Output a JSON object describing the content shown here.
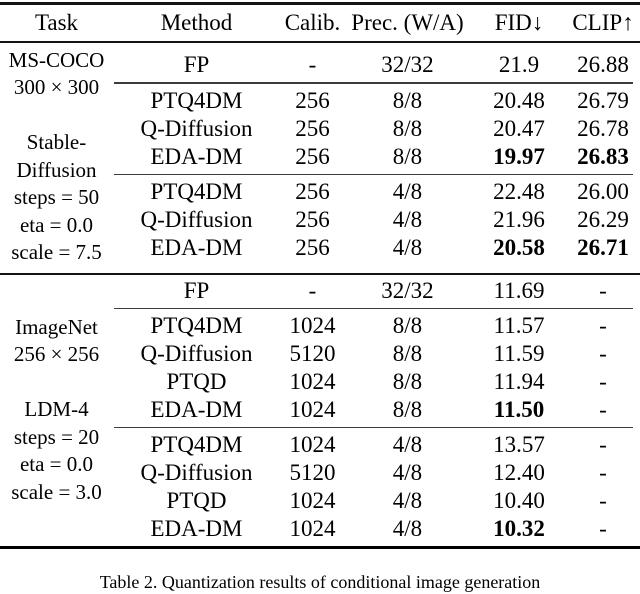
{
  "header": {
    "columns": [
      "Task",
      "Method",
      "Calib.",
      "Prec. (W/A)",
      "FID↓",
      "CLIP↑"
    ]
  },
  "blocks": [
    {
      "task_lines": [
        "MS-COCO",
        "300 × 300",
        "",
        "Stable-",
        "Diffusion",
        "steps = 50",
        "eta = 0.0",
        "scale = 7.5"
      ],
      "groups": [
        {
          "rows": [
            {
              "method": "FP",
              "calib": "-",
              "prec": "32/32",
              "fid": "21.9",
              "clip": "26.88"
            }
          ]
        },
        {
          "rows": [
            {
              "method": "PTQ4DM",
              "calib": "256",
              "prec": "8/8",
              "fid": "20.48",
              "clip": "26.79"
            },
            {
              "method": "Q-Diffusion",
              "calib": "256",
              "prec": "8/8",
              "fid": "20.47",
              "clip": "26.78"
            },
            {
              "method": "EDA-DM",
              "calib": "256",
              "prec": "8/8",
              "fid": "19.97",
              "clip": "26.83"
            }
          ]
        },
        {
          "rows": [
            {
              "method": "PTQ4DM",
              "calib": "256",
              "prec": "4/8",
              "fid": "22.48",
              "clip": "26.00"
            },
            {
              "method": "Q-Diffusion",
              "calib": "256",
              "prec": "4/8",
              "fid": "21.96",
              "clip": "26.29"
            },
            {
              "method": "EDA-DM",
              "calib": "256",
              "prec": "4/8",
              "fid": "20.58",
              "clip": "26.71"
            }
          ]
        }
      ]
    },
    {
      "task_lines": [
        "ImageNet",
        "256 × 256",
        "",
        "LDM-4",
        "steps = 20",
        "eta = 0.0",
        "scale = 3.0"
      ],
      "groups": [
        {
          "rows": [
            {
              "method": "FP",
              "calib": "-",
              "prec": "32/32",
              "fid": "11.69",
              "clip": "-"
            }
          ]
        },
        {
          "rows": [
            {
              "method": "PTQ4DM",
              "calib": "1024",
              "prec": "8/8",
              "fid": "11.57",
              "clip": "-"
            },
            {
              "method": "Q-Diffusion",
              "calib": "5120",
              "prec": "8/8",
              "fid": "11.59",
              "clip": "-"
            },
            {
              "method": "PTQD",
              "calib": "1024",
              "prec": "8/8",
              "fid": "11.94",
              "clip": "-"
            },
            {
              "method": "EDA-DM",
              "calib": "1024",
              "prec": "8/8",
              "fid": "11.50",
              "clip": "-"
            }
          ]
        },
        {
          "rows": [
            {
              "method": "PTQ4DM",
              "calib": "1024",
              "prec": "4/8",
              "fid": "13.57",
              "clip": "-"
            },
            {
              "method": "Q-Diffusion",
              "calib": "5120",
              "prec": "4/8",
              "fid": "12.40",
              "clip": "-"
            },
            {
              "method": "PTQD",
              "calib": "1024",
              "prec": "4/8",
              "fid": "10.40",
              "clip": "-"
            },
            {
              "method": "EDA-DM",
              "calib": "1024",
              "prec": "4/8",
              "fid": "10.32",
              "clip": "-"
            }
          ]
        }
      ]
    }
  ],
  "caption": "Table 2. Quantization results of conditional image generation"
}
